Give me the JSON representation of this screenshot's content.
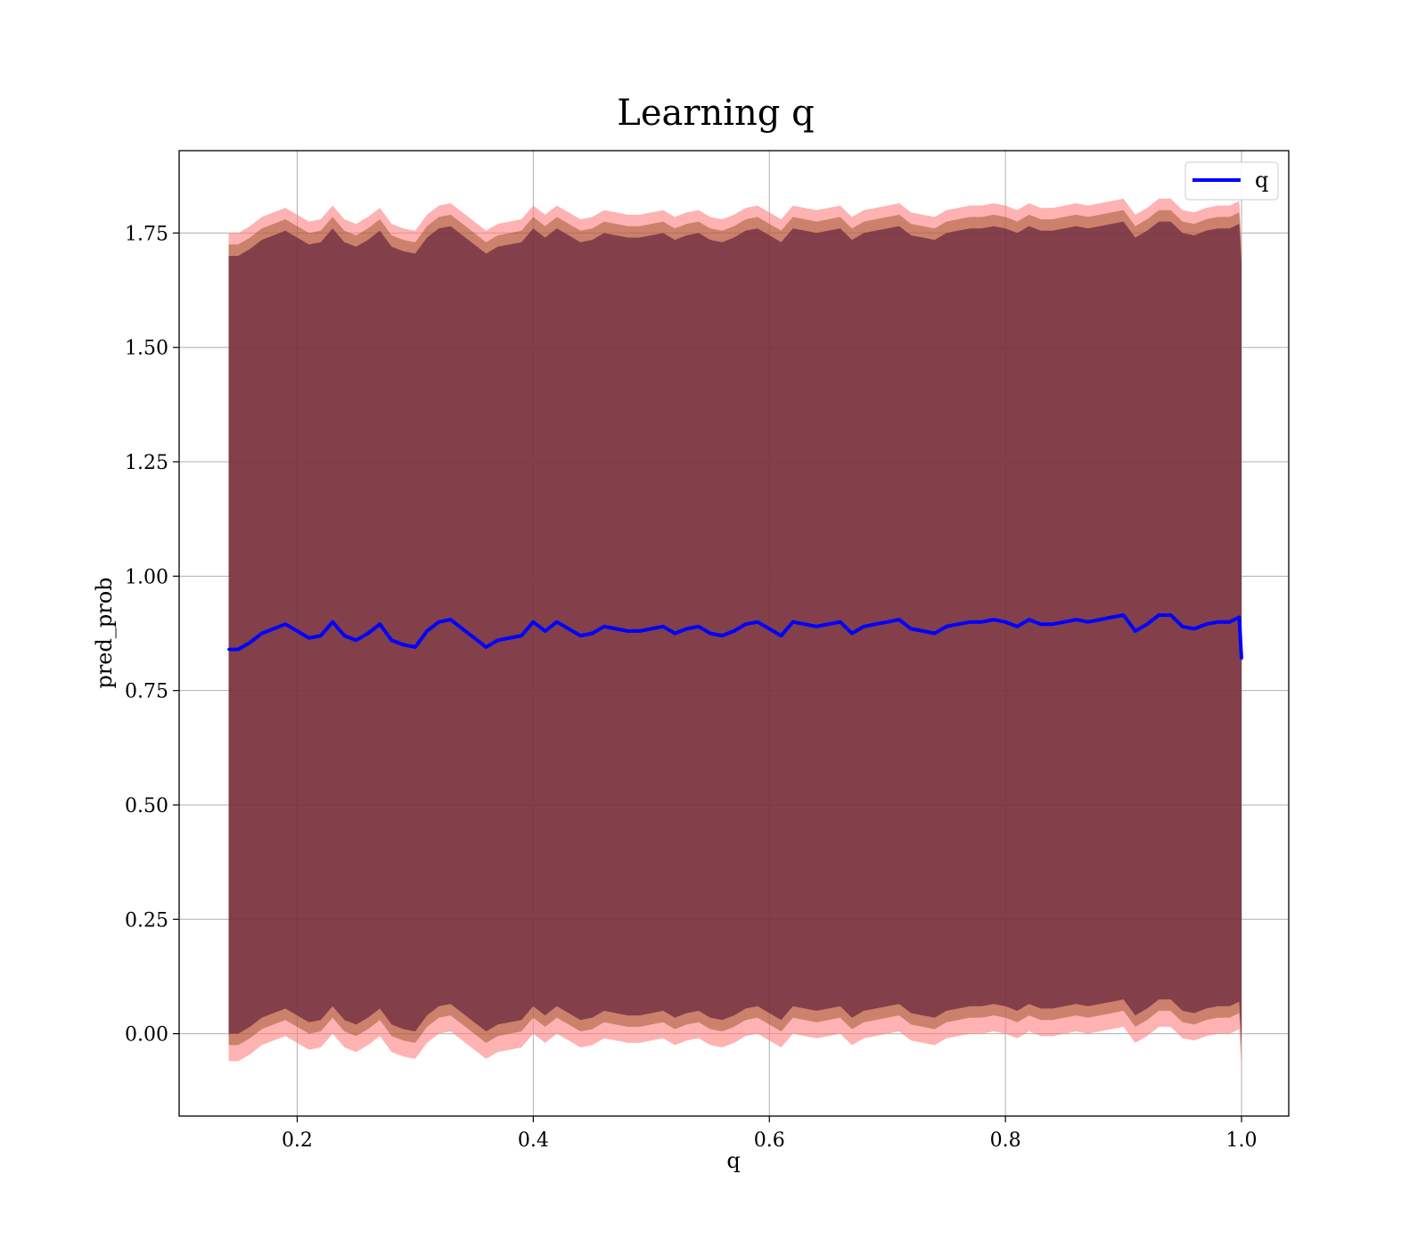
{
  "chart_data": {
    "type": "line",
    "title": "Learning q",
    "xlabel": "q",
    "ylabel": "pred_prob",
    "xlim": [
      0.1,
      1.04
    ],
    "ylim": [
      -0.18,
      1.93
    ],
    "grid": true,
    "legend_placement": "top-right",
    "x_ticks": [
      0.2,
      0.4,
      0.6,
      0.8,
      1.0
    ],
    "x_tick_labels": [
      "0.2",
      "0.4",
      "0.6",
      "0.8",
      "1.0"
    ],
    "y_ticks": [
      0.0,
      0.25,
      0.5,
      0.75,
      1.0,
      1.25,
      1.5,
      1.75
    ],
    "y_tick_labels": [
      "0.00",
      "0.25",
      "0.50",
      "0.75",
      "1.00",
      "1.25",
      "1.50",
      "1.75"
    ],
    "series": [
      {
        "name": "q",
        "color": "#0000ff",
        "x": [
          0.142,
          0.15,
          0.16,
          0.17,
          0.18,
          0.19,
          0.2,
          0.21,
          0.22,
          0.23,
          0.24,
          0.25,
          0.26,
          0.27,
          0.28,
          0.29,
          0.3,
          0.31,
          0.32,
          0.33,
          0.34,
          0.35,
          0.36,
          0.37,
          0.38,
          0.39,
          0.4,
          0.41,
          0.42,
          0.43,
          0.44,
          0.45,
          0.46,
          0.47,
          0.48,
          0.49,
          0.5,
          0.51,
          0.52,
          0.53,
          0.54,
          0.55,
          0.56,
          0.57,
          0.58,
          0.59,
          0.6,
          0.61,
          0.62,
          0.63,
          0.64,
          0.65,
          0.66,
          0.67,
          0.68,
          0.69,
          0.7,
          0.71,
          0.72,
          0.73,
          0.74,
          0.75,
          0.76,
          0.77,
          0.78,
          0.79,
          0.8,
          0.81,
          0.82,
          0.83,
          0.84,
          0.85,
          0.86,
          0.87,
          0.88,
          0.89,
          0.9,
          0.91,
          0.92,
          0.93,
          0.94,
          0.95,
          0.96,
          0.97,
          0.98,
          0.99,
          0.998,
          1.0
        ],
        "y": [
          0.84,
          0.84,
          0.855,
          0.875,
          0.885,
          0.895,
          0.88,
          0.865,
          0.87,
          0.9,
          0.87,
          0.86,
          0.875,
          0.895,
          0.86,
          0.85,
          0.845,
          0.88,
          0.9,
          0.905,
          0.885,
          0.865,
          0.845,
          0.86,
          0.865,
          0.87,
          0.9,
          0.88,
          0.9,
          0.885,
          0.87,
          0.875,
          0.89,
          0.885,
          0.88,
          0.88,
          0.885,
          0.89,
          0.875,
          0.885,
          0.89,
          0.875,
          0.87,
          0.88,
          0.895,
          0.9,
          0.885,
          0.87,
          0.9,
          0.895,
          0.89,
          0.895,
          0.9,
          0.875,
          0.89,
          0.895,
          0.9,
          0.905,
          0.885,
          0.88,
          0.875,
          0.89,
          0.895,
          0.9,
          0.9,
          0.905,
          0.9,
          0.89,
          0.905,
          0.895,
          0.895,
          0.9,
          0.905,
          0.9,
          0.905,
          0.91,
          0.915,
          0.88,
          0.895,
          0.915,
          0.915,
          0.89,
          0.885,
          0.895,
          0.9,
          0.9,
          0.91,
          0.82
        ]
      }
    ],
    "bands": [
      {
        "name": "outer_band",
        "color": "#ff7f7f",
        "opacity": 0.6,
        "lower_offset": -0.9,
        "upper_offset": 0.91
      },
      {
        "name": "inner_band",
        "color": "#8b4513",
        "opacity": 0.45,
        "lower_offset": -0.865,
        "upper_offset": 0.885
      },
      {
        "name": "core_band",
        "color": "#6b2a3f",
        "opacity": 0.75,
        "lower_offset": -0.84,
        "upper_offset": 0.86
      }
    ]
  }
}
